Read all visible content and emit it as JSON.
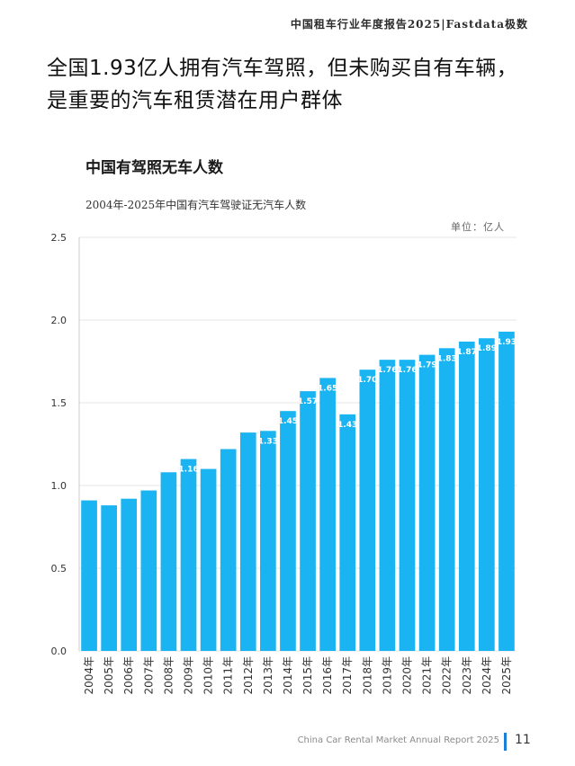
{
  "header": {
    "brand": "中国租车行业年度报告2025|Fastdata极数"
  },
  "headline": {
    "line1": "全国1.93亿人拥有汽车驾照，但未购买自有车辆，",
    "line2": "是重要的汽车租赁潜在用户群体"
  },
  "colors": {
    "bar": "#19b4f1",
    "axis": "#cccccc",
    "bar_label": "#ffffff",
    "accent": "#1a7fd6"
  },
  "chart_data": {
    "type": "bar",
    "heading": "中国有驾照无车人数",
    "title": "2004年-2025年中国有汽车驾驶证无汽车人数",
    "unit": "单位：亿人",
    "xlabel": "",
    "ylabel": "",
    "ylim": [
      0,
      2.5
    ],
    "ytick_labels": [
      "0.0",
      "0.5",
      "1.0",
      "1.5",
      "2.0",
      "2.5"
    ],
    "categories": [
      "2004年",
      "2005年",
      "2006年",
      "2007年",
      "2008年",
      "2009年",
      "2010年",
      "2011年",
      "2012年",
      "2013年",
      "2014年",
      "2015年",
      "2016年",
      "2017年",
      "2018年",
      "2019年",
      "2020年",
      "2021年",
      "2022年",
      "2023年",
      "2024年",
      "2025年"
    ],
    "values": [
      0.91,
      0.88,
      0.92,
      0.97,
      1.08,
      1.16,
      1.1,
      1.22,
      1.32,
      1.33,
      1.45,
      1.57,
      1.65,
      1.43,
      1.7,
      1.76,
      1.76,
      1.79,
      1.83,
      1.87,
      1.89,
      1.93
    ],
    "data_labels": [
      "",
      "",
      "",
      "",
      "",
      "1.16",
      "",
      "",
      "",
      "1.33",
      "1.45",
      "1.57",
      "1.65",
      "1.43",
      "1.70",
      "1.76",
      "1.76",
      "1.79",
      "1.83",
      "1.87",
      "1.89",
      "1.93"
    ]
  },
  "footer": {
    "report_name": "China Car Rental Market Annual Report 2025",
    "page_number": "11"
  }
}
